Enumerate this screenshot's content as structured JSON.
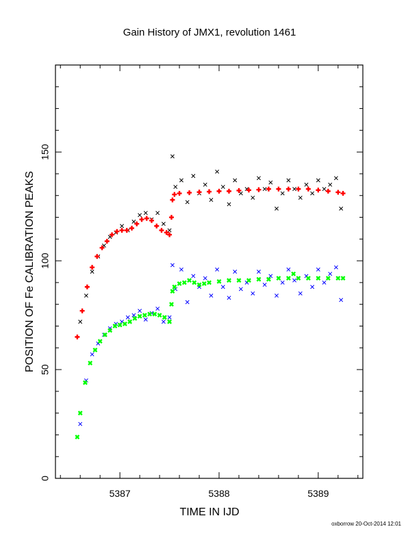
{
  "chart_data": {
    "type": "scatter",
    "title": "Gain History of JMX1, revolution 1461",
    "xlabel": "TIME IN IJD",
    "ylabel": "POSITION OF Fe CALIBRATION PEAKS",
    "xlim": [
      5386.35,
      5389.45
    ],
    "ylim": [
      0,
      190
    ],
    "xticks": [
      5387,
      5388,
      5389
    ],
    "yticks": [
      0,
      50,
      100,
      150
    ],
    "grid": false,
    "legend": "none",
    "series": [
      {
        "role": "raw-peak-1",
        "color": "#000000",
        "marker": "x",
        "x": [
          5386.6,
          5386.66,
          5386.72,
          5386.78,
          5386.84,
          5386.9,
          5386.96,
          5387.02,
          5387.08,
          5387.14,
          5387.2,
          5387.26,
          5387.32,
          5387.38,
          5387.44,
          5387.5,
          5387.53,
          5387.56,
          5387.62,
          5387.68,
          5387.74,
          5387.8,
          5387.86,
          5387.92,
          5387.98,
          5388.04,
          5388.1,
          5388.16,
          5388.22,
          5388.28,
          5388.34,
          5388.4,
          5388.46,
          5388.52,
          5388.58,
          5388.64,
          5388.7,
          5388.76,
          5388.82,
          5388.88,
          5388.94,
          5389.0,
          5389.06,
          5389.12,
          5389.18,
          5389.23
        ],
        "y": [
          72,
          84,
          95,
          102,
          107,
          111,
          113,
          116,
          114,
          118,
          121,
          122,
          119,
          122,
          117,
          114,
          148,
          134,
          137,
          127,
          139,
          131,
          135,
          128,
          141,
          134,
          126,
          137,
          131,
          133,
          129,
          138,
          133,
          136,
          124,
          131,
          137,
          133,
          129,
          135,
          131,
          137,
          133,
          135,
          138,
          124
        ]
      },
      {
        "role": "fit-peak-1",
        "color": "#ff0000",
        "marker": "+",
        "x": [
          5386.57,
          5386.62,
          5386.67,
          5386.72,
          5386.77,
          5386.82,
          5386.87,
          5386.92,
          5386.97,
          5387.02,
          5387.07,
          5387.12,
          5387.17,
          5387.22,
          5387.27,
          5387.32,
          5387.37,
          5387.42,
          5387.47,
          5387.5,
          5387.52,
          5387.53,
          5387.55,
          5387.6,
          5387.7,
          5387.8,
          5387.9,
          5388.0,
          5388.1,
          5388.2,
          5388.3,
          5388.4,
          5388.5,
          5388.6,
          5388.7,
          5388.8,
          5388.9,
          5389.0,
          5389.1,
          5389.2,
          5389.25
        ],
        "y": [
          65,
          77,
          88,
          97,
          102,
          106,
          109,
          112,
          113.5,
          114,
          114,
          115,
          117,
          119,
          119.5,
          118.5,
          116,
          114,
          113,
          112,
          120,
          128,
          130.5,
          131,
          131.3,
          131.6,
          131.8,
          132,
          132,
          132.3,
          132.5,
          132.7,
          133,
          133,
          133,
          133,
          133,
          132.5,
          132,
          131.5,
          131
        ]
      },
      {
        "role": "raw-peak-2",
        "color": "#0000ff",
        "marker": "x",
        "x": [
          5386.6,
          5386.66,
          5386.72,
          5386.78,
          5386.84,
          5386.9,
          5386.96,
          5387.02,
          5387.08,
          5387.14,
          5387.2,
          5387.26,
          5387.32,
          5387.38,
          5387.44,
          5387.5,
          5387.53,
          5387.56,
          5387.62,
          5387.68,
          5387.74,
          5387.8,
          5387.86,
          5387.92,
          5387.98,
          5388.04,
          5388.1,
          5388.16,
          5388.22,
          5388.28,
          5388.34,
          5388.4,
          5388.46,
          5388.52,
          5388.58,
          5388.64,
          5388.7,
          5388.76,
          5388.82,
          5388.88,
          5388.94,
          5389.0,
          5389.06,
          5389.12,
          5389.18,
          5389.23
        ],
        "y": [
          25,
          45,
          57,
          62,
          66,
          69,
          71,
          72,
          74,
          75,
          77,
          73,
          76,
          78,
          72,
          74,
          98,
          87,
          96,
          81,
          93,
          88,
          92,
          84,
          96,
          88,
          83,
          95,
          87,
          90,
          85,
          95,
          89,
          93,
          84,
          90,
          96,
          91,
          85,
          93,
          88,
          96,
          90,
          94,
          97,
          82
        ]
      },
      {
        "role": "fit-peak-2",
        "color": "#00ff00",
        "marker": "x",
        "x": [
          5386.57,
          5386.6,
          5386.65,
          5386.7,
          5386.75,
          5386.8,
          5386.85,
          5386.9,
          5386.95,
          5387.0,
          5387.05,
          5387.1,
          5387.15,
          5387.2,
          5387.25,
          5387.3,
          5387.35,
          5387.4,
          5387.45,
          5387.5,
          5387.52,
          5387.53,
          5387.55,
          5387.6,
          5387.65,
          5387.7,
          5387.75,
          5387.8,
          5387.85,
          5387.9,
          5388.0,
          5388.1,
          5388.2,
          5388.3,
          5388.4,
          5388.5,
          5388.6,
          5388.7,
          5388.75,
          5388.8,
          5388.9,
          5389.0,
          5389.1,
          5389.2,
          5389.25
        ],
        "y": [
          19,
          30,
          44,
          53,
          59,
          63,
          66,
          68,
          70,
          70.5,
          71,
          72,
          73.5,
          74.5,
          75,
          75.5,
          75.5,
          75,
          74,
          72,
          80,
          86,
          88,
          89.5,
          90,
          91,
          90,
          89,
          89.5,
          90,
          90.5,
          91,
          91,
          91,
          91.5,
          91.5,
          92,
          92,
          94,
          92,
          92,
          92,
          92,
          92,
          92
        ]
      }
    ],
    "footer": "oxborrow 20-Oct-2014 12:01"
  }
}
